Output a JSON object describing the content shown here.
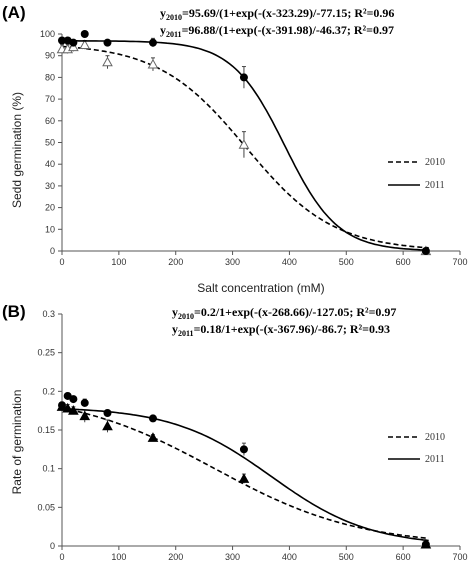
{
  "chart_data": [
    {
      "type": "scatter",
      "panel_label": "(A)",
      "ylabel": "Sedd germination (%)",
      "xlabel": "Salt concentration (mM)",
      "xlim": [
        0,
        700
      ],
      "ylim": [
        0,
        100
      ],
      "xticks": [
        "0",
        "100",
        "200",
        "300",
        "400",
        "500",
        "600",
        "700"
      ],
      "yticks": [
        "0",
        "10",
        "20",
        "30",
        "40",
        "50",
        "60",
        "70",
        "80",
        "90",
        "100"
      ],
      "grid": false,
      "legend_position": "right",
      "equations": [
        {
          "y": "y",
          "sub": "2010",
          "rest": "=95.69/(1+exp(-(x-323.29)/-77.15; R²=0.96"
        },
        {
          "y": "y",
          "sub": "2011",
          "rest": "=96.88/(1+exp(-(x-391.98)/-46.37; R²=0.97"
        }
      ],
      "series": [
        {
          "name": "2010",
          "marker": "open-triangle",
          "line": "dashed",
          "fit": {
            "a": 95.69,
            "x0": 323.29,
            "b": -77.15
          },
          "points": [
            {
              "x": 0,
              "y": 93,
              "err": 2
            },
            {
              "x": 10,
              "y": 93,
              "err": 2
            },
            {
              "x": 20,
              "y": 94,
              "err": 2
            },
            {
              "x": 40,
              "y": 95,
              "err": 2
            },
            {
              "x": 80,
              "y": 87,
              "err": 3
            },
            {
              "x": 160,
              "y": 86,
              "err": 3
            },
            {
              "x": 320,
              "y": 49,
              "err": 6
            },
            {
              "x": 640,
              "y": 0,
              "err": 0
            }
          ]
        },
        {
          "name": "2011",
          "marker": "filled-circle",
          "line": "solid",
          "fit": {
            "a": 96.88,
            "x0": 391.98,
            "b": -46.37
          },
          "points": [
            {
              "x": 0,
              "y": 97,
              "err": 1
            },
            {
              "x": 10,
              "y": 97,
              "err": 1
            },
            {
              "x": 20,
              "y": 96,
              "err": 1
            },
            {
              "x": 40,
              "y": 100,
              "err": 1
            },
            {
              "x": 80,
              "y": 96,
              "err": 1
            },
            {
              "x": 160,
              "y": 96,
              "err": 2
            },
            {
              "x": 320,
              "y": 80,
              "err": 5
            },
            {
              "x": 640,
              "y": 0,
              "err": 0
            }
          ]
        }
      ]
    },
    {
      "type": "scatter",
      "panel_label": "(B)",
      "ylabel": "Rate of germination",
      "xlabel": "",
      "xlim": [
        0,
        700
      ],
      "ylim": [
        0,
        0.3
      ],
      "xticks": [
        "0",
        "100",
        "200",
        "300",
        "400",
        "500",
        "600",
        "700"
      ],
      "yticks": [
        "0",
        "0.05",
        "0.1",
        "0.15",
        "0.2",
        "0.25",
        "0.3"
      ],
      "grid": false,
      "legend_position": "right",
      "equations": [
        {
          "y": "y",
          "sub": "2010",
          "rest": "=0.2/1+exp(-(x-268.66)/-127.05; R²=0.97"
        },
        {
          "y": "y",
          "sub": "2011",
          "rest": "=0.18/1+exp(-(x-367.96)/-86.7; R²=0.93"
        }
      ],
      "series": [
        {
          "name": "2010",
          "marker": "filled-triangle",
          "line": "dashed",
          "fit": {
            "a": 0.2,
            "x0": 268.66,
            "b": -127.05
          },
          "points": [
            {
              "x": 0,
              "y": 0.18,
              "err": 0.005
            },
            {
              "x": 10,
              "y": 0.178,
              "err": 0.005
            },
            {
              "x": 20,
              "y": 0.175,
              "err": 0.005
            },
            {
              "x": 40,
              "y": 0.168,
              "err": 0.008
            },
            {
              "x": 80,
              "y": 0.155,
              "err": 0.008
            },
            {
              "x": 160,
              "y": 0.14,
              "err": 0.004
            },
            {
              "x": 320,
              "y": 0.087,
              "err": 0.006
            },
            {
              "x": 640,
              "y": 0.002,
              "err": 0
            }
          ]
        },
        {
          "name": "2011",
          "marker": "filled-circle",
          "line": "solid",
          "fit": {
            "a": 0.18,
            "x0": 367.96,
            "b": -86.7
          },
          "points": [
            {
              "x": 0,
              "y": 0.182,
              "err": 0.004
            },
            {
              "x": 10,
              "y": 0.194,
              "err": 0.004
            },
            {
              "x": 20,
              "y": 0.19,
              "err": 0.004
            },
            {
              "x": 40,
              "y": 0.185,
              "err": 0.005
            },
            {
              "x": 80,
              "y": 0.172,
              "err": 0.004
            },
            {
              "x": 160,
              "y": 0.165,
              "err": 0.003
            },
            {
              "x": 320,
              "y": 0.125,
              "err": 0.008
            },
            {
              "x": 640,
              "y": 0.002,
              "err": 0
            }
          ]
        }
      ]
    }
  ]
}
